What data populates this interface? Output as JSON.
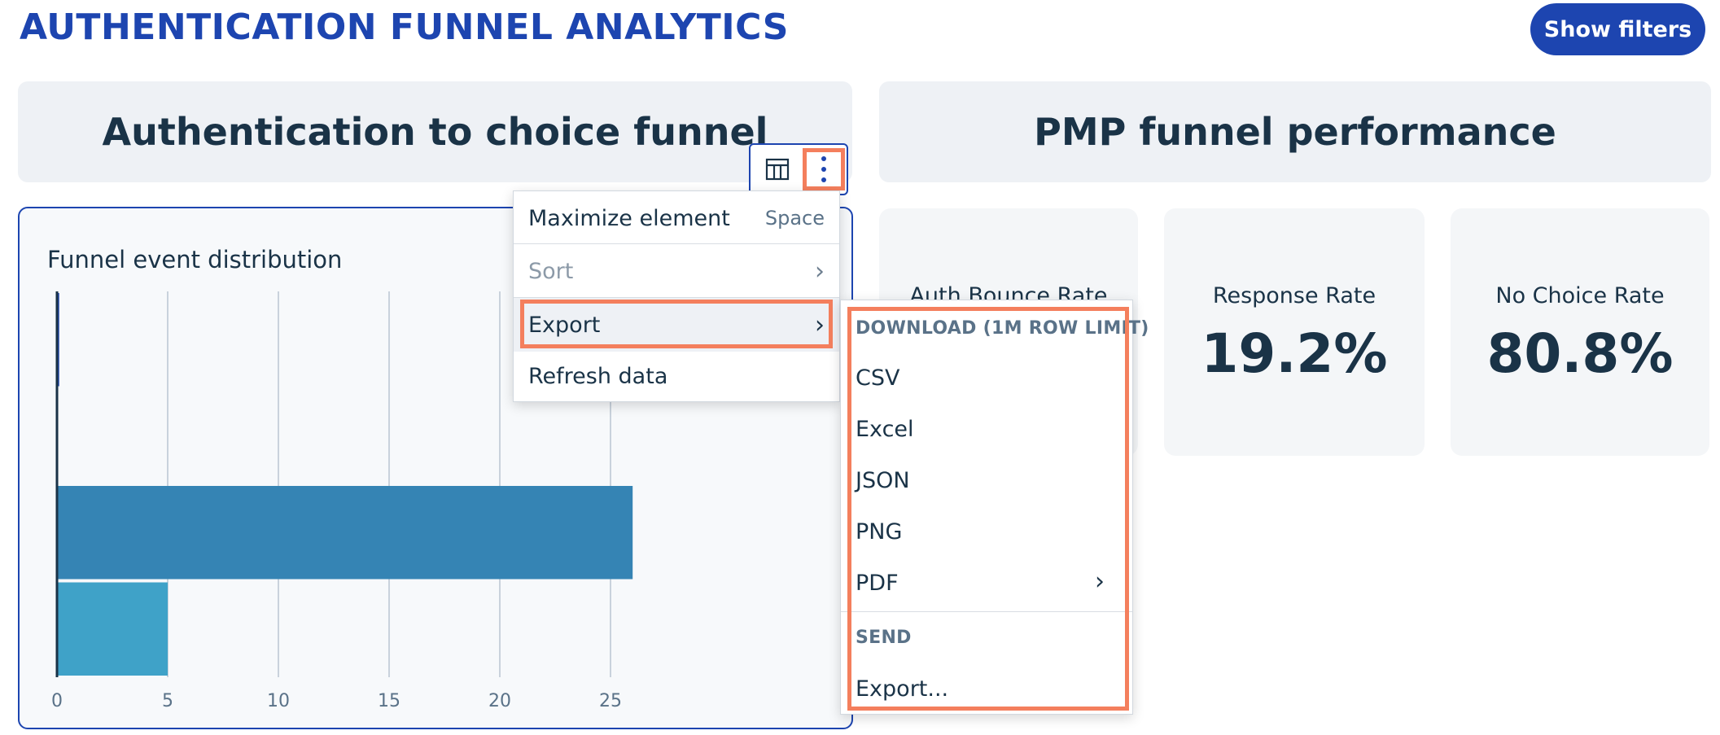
{
  "header": {
    "title": "AUTHENTICATION FUNNEL ANALYTICS",
    "show_filters_label": "Show filters"
  },
  "sections": {
    "left_title": "Authentication to choice funnel",
    "right_title": "PMP funnel performance"
  },
  "chart_card": {
    "title": "Funnel event distribution",
    "chart_data": {
      "type": "bar",
      "orientation": "horizontal",
      "categories": [
        "",
        "",
        "",
        ""
      ],
      "values": [
        0.1,
        0.05,
        26,
        5
      ],
      "colors": [
        "#1d45b0",
        "#1d45b0",
        "#3584b4",
        "#3fa2c8"
      ],
      "xlim": [
        0,
        35
      ],
      "xticks": [
        0,
        5,
        10,
        15,
        20,
        25
      ],
      "grid": true,
      "title": "Funnel event distribution",
      "xlabel": "",
      "ylabel": ""
    }
  },
  "toolbar": {
    "table_icon": "table-icon",
    "more_icon": "overflow-menu-vertical-icon"
  },
  "context_menu": {
    "maximize_label": "Maximize element",
    "maximize_shortcut": "Space",
    "sort_label": "Sort",
    "export_label": "Export",
    "refresh_label": "Refresh data",
    "chevron": "›"
  },
  "export_submenu": {
    "download_heading": "DOWNLOAD (1M ROW LIMIT)",
    "csv": "CSV",
    "excel": "Excel",
    "json": "JSON",
    "png": "PNG",
    "pdf": "PDF",
    "send_heading": "SEND",
    "export_more": "Export...",
    "chevron": "›"
  },
  "kpis": [
    {
      "label": "Auth Bounce Rate",
      "value": ""
    },
    {
      "label": "Response Rate",
      "value": "19.2%"
    },
    {
      "label": "No Choice Rate",
      "value": "80.8%"
    }
  ],
  "colors": {
    "accent": "#1d45b0",
    "highlight": "#f47f5d",
    "text": "#1a3347",
    "panel": "#eef1f5"
  }
}
